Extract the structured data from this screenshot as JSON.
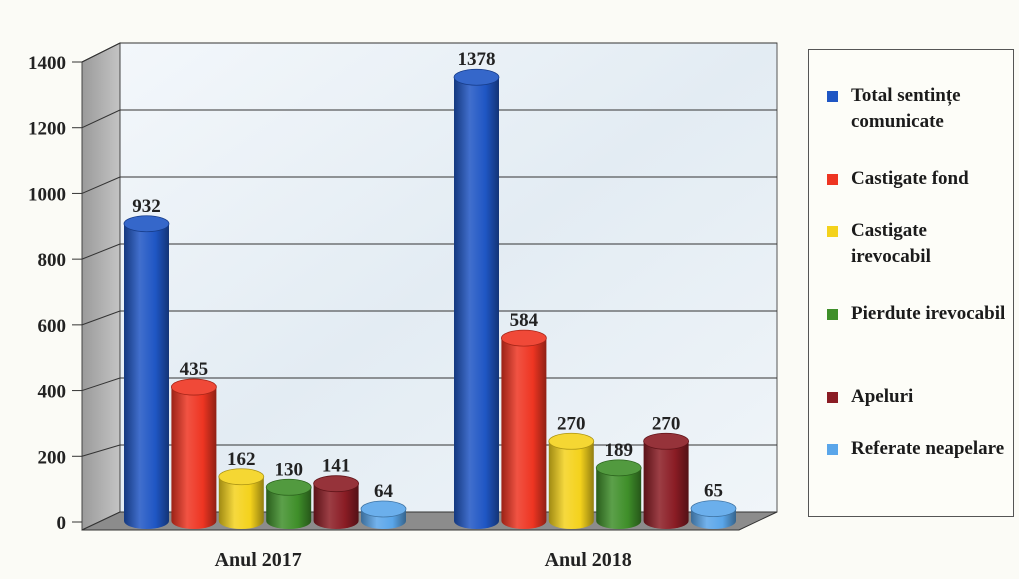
{
  "chart_data": {
    "type": "bar",
    "categories": [
      "Anul 2017",
      "Anul 2018"
    ],
    "series": [
      {
        "name": "Total sentințe comunicate",
        "values": [
          932,
          1378
        ],
        "color": "#1f56c4"
      },
      {
        "name": "Castigate fond",
        "values": [
          435,
          584
        ],
        "color": "#ee3522"
      },
      {
        "name": "Castigate irevocabil",
        "values": [
          162,
          270
        ],
        "color": "#f4d21c"
      },
      {
        "name": "Pierdute irevocabil",
        "values": [
          130,
          189
        ],
        "color": "#3f8f2a"
      },
      {
        "name": "Apeluri",
        "values": [
          141,
          270
        ],
        "color": "#8a1c24"
      },
      {
        "name": "Referate neapelare",
        "values": [
          64,
          65
        ],
        "color": "#5aa6ea"
      }
    ],
    "yticks": [
      "0",
      "200",
      "400",
      "600",
      "800",
      "1000",
      "1200",
      "1400"
    ],
    "ylim": [
      0,
      1400
    ],
    "grid": true,
    "legend_position": "right",
    "shape": "3d-cylinder"
  }
}
